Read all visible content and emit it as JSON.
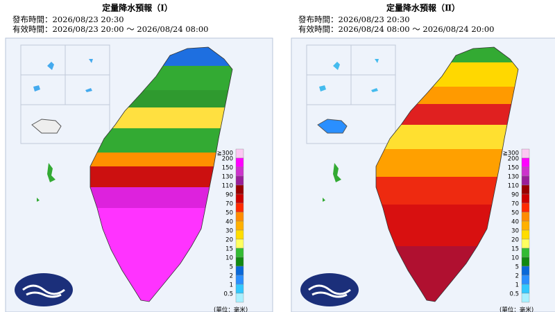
{
  "panels": [
    {
      "title": "定量降水預報（Ⅰ）",
      "issued": "發布時間：2026/08/23 20:30",
      "valid": "有效時間：2026/08/23 20:00 ～ 2026/08/24 08:00"
    },
    {
      "title": "定量降水預報（Ⅱ）",
      "issued": "發布時間：2026/08/23 20:30",
      "valid": "有效時間：2026/08/24 08:00 ～ 2026/08/24 20:00"
    }
  ],
  "legend": {
    "labels": [
      "≧300",
      "200",
      "150",
      "130",
      "110",
      "90",
      "70",
      "50",
      "40",
      "30",
      "20",
      "15",
      "10",
      "5",
      "2",
      "1",
      "0.5"
    ],
    "colors": [
      "#fbc8f2",
      "#ff00ff",
      "#cc33cc",
      "#991f99",
      "#990000",
      "#cc0000",
      "#ff2a00",
      "#ff8c00",
      "#ffb000",
      "#ffdd00",
      "#ffff60",
      "#33bb33",
      "#118811",
      "#0a68d8",
      "#2a8fff",
      "#33c8ff",
      "#a8f0ff"
    ],
    "unit": "(單位：毫米)"
  }
}
